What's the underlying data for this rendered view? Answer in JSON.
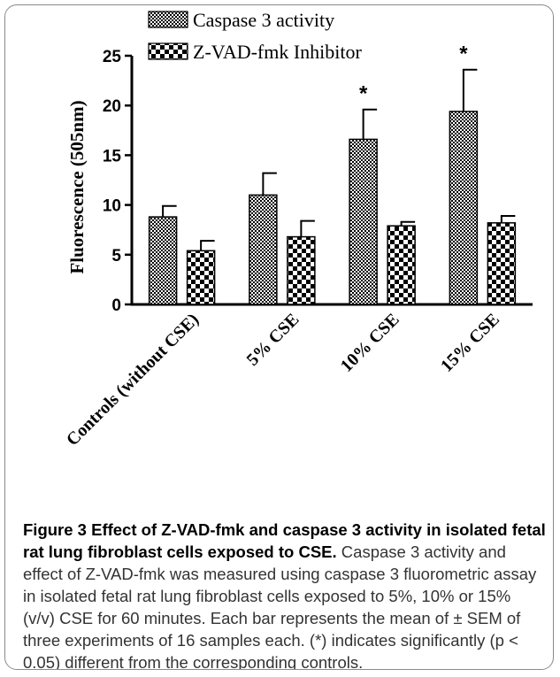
{
  "chart_data": {
    "type": "bar",
    "ylabel": "Fluorescence (505nm)",
    "ylim": [
      0,
      25
    ],
    "yticks": [
      0,
      5,
      10,
      15,
      20,
      25
    ],
    "categories": [
      "Controls (without CSE)",
      "5% CSE",
      "10% CSE",
      "15% CSE"
    ],
    "series": [
      {
        "name": "Caspase 3 activity",
        "pattern": "fine-checker",
        "values": [
          8.8,
          11.0,
          16.6,
          19.4
        ],
        "errors": [
          1.1,
          2.2,
          3.0,
          4.2
        ]
      },
      {
        "name": "Z-VAD-fmk Inhibitor",
        "pattern": "coarse-checker",
        "values": [
          5.4,
          6.8,
          7.9,
          8.2
        ],
        "errors": [
          1.0,
          1.6,
          0.4,
          0.7
        ]
      }
    ],
    "significance": [
      {
        "series": 0,
        "category": 2,
        "label": "*"
      },
      {
        "series": 0,
        "category": 3,
        "label": "*"
      }
    ],
    "legend_position": "top",
    "grid": false
  },
  "caption": {
    "title": "Figure 3 Effect of Z-VAD-fmk and caspase 3 activity in isolated fetal rat lung fibroblast cells exposed to CSE.",
    "text": "Caspase 3 activity and effect of Z-VAD-fmk was measured using caspase 3 fluorometric assay in isolated fetal rat lung fibroblast cells exposed to 5%, 10% or 15% (v/v) CSE for 60 minutes. Each bar represents the mean of ± SEM of three experiments of 16 samples each. (*) indicates significantly (p < 0.05) different from the corresponding controls."
  }
}
